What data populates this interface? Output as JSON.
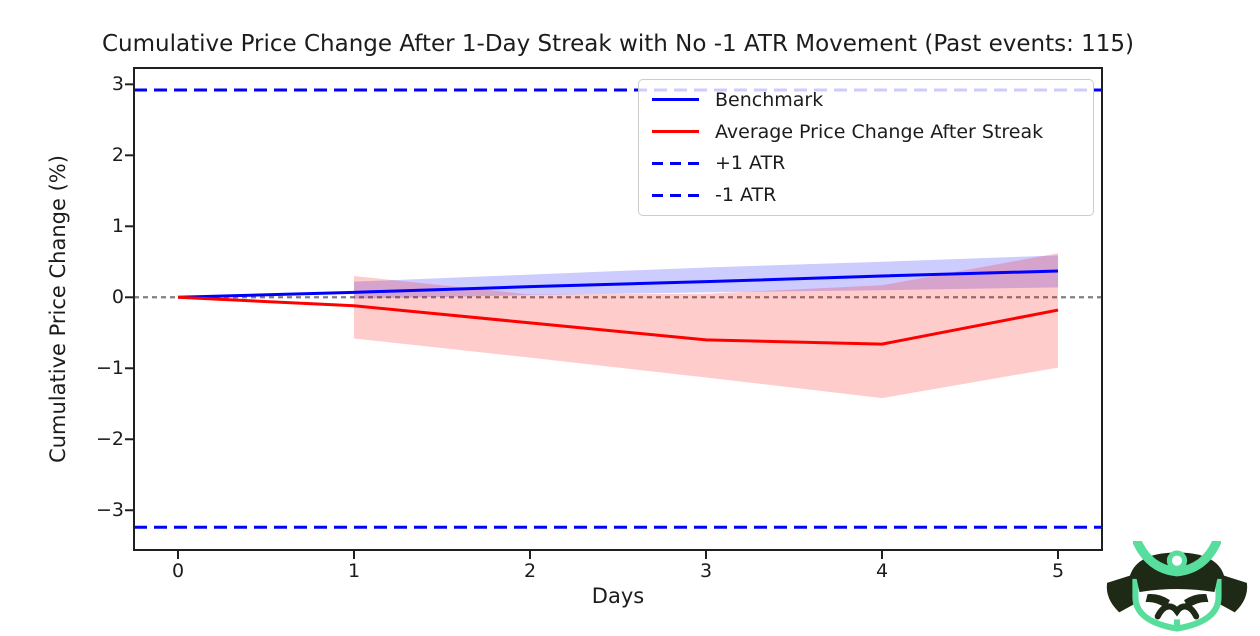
{
  "title": "Cumulative Price Change After 1-Day Streak with No -1 ATR Movement (Past events: 115)",
  "axes": {
    "xlabel": "Days",
    "ylabel": "Cumulative Price Change (%)",
    "xtick_labels": [
      "0",
      "1",
      "2",
      "3",
      "4",
      "5"
    ],
    "ytick_labels": [
      "3",
      "2",
      "1",
      "0",
      "−1",
      "−2",
      "−3"
    ]
  },
  "legend": {
    "items": [
      {
        "label": "Benchmark",
        "color": "#0000ff",
        "line_style": "solid"
      },
      {
        "label": "Average Price Change After Streak",
        "color": "#ff0000",
        "line_style": "solid"
      },
      {
        "label": "+1 ATR",
        "color": "#0000ff",
        "line_style": "dashed"
      },
      {
        "label": "-1 ATR",
        "color": "#0000ff",
        "line_style": "dashed"
      }
    ]
  },
  "chart_data": {
    "type": "line",
    "past_events": 115,
    "x": [
      0,
      1,
      2,
      3,
      4,
      5
    ],
    "x_tick_values": [
      0,
      1,
      2,
      3,
      4,
      5
    ],
    "y_tick_values": [
      3,
      2,
      1,
      0,
      -1,
      -2,
      -3
    ],
    "xlim": [
      -0.25,
      5.25
    ],
    "ylim": [
      -3.56,
      3.23
    ],
    "series": [
      {
        "name": "Benchmark",
        "color": "#0000ff",
        "line_style": "solid",
        "values": [
          0,
          0.07,
          0.15,
          0.22,
          0.3,
          0.37
        ],
        "band": {
          "x": [
            1,
            2,
            3,
            4,
            5
          ],
          "upper": [
            0.22,
            0.32,
            0.42,
            0.5,
            0.59
          ],
          "lower": [
            -0.02,
            0.03,
            0.07,
            0.1,
            0.14
          ]
        }
      },
      {
        "name": "Average Price Change After Streak",
        "color": "#ff0000",
        "line_style": "solid",
        "values": [
          0,
          -0.12,
          -0.36,
          -0.6,
          -0.66,
          -0.18
        ],
        "band": {
          "x": [
            1,
            2,
            3,
            4,
            5
          ],
          "upper": [
            0.3,
            0.04,
            0.05,
            0.17,
            0.62
          ],
          "lower": [
            -0.58,
            -0.85,
            -1.13,
            -1.42,
            -0.99
          ]
        }
      },
      {
        "name": "+1 ATR",
        "color": "#0000ff",
        "line_style": "dashed",
        "value": 2.92
      },
      {
        "name": "-1 ATR",
        "color": "#0000ff",
        "line_style": "dashed",
        "value": -3.24
      }
    ],
    "zero_line": {
      "value": 0,
      "color": "#808080",
      "line_style": "dashed"
    },
    "grid": false,
    "legend_position": "upper right",
    "band_opacity": 0.2,
    "spine_color": "#202020"
  },
  "logo": {
    "name": "samurai-mask",
    "dark_color": "#1e2a16",
    "accent_color": "#57dd9c"
  }
}
